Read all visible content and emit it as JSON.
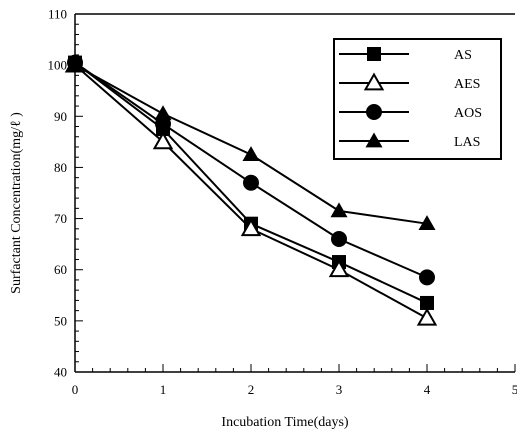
{
  "chart_data": {
    "type": "line",
    "xlabel": "Incubation Time(days)",
    "ylabel": "Surfactant Concentration(mg/ℓ )",
    "xlim": [
      0,
      5
    ],
    "ylim": [
      40,
      110
    ],
    "xticks": [
      "0",
      "1",
      "2",
      "3",
      "4",
      "5"
    ],
    "yticks": [
      "40",
      "50",
      "60",
      "70",
      "80",
      "90",
      "100",
      "110"
    ],
    "grid": false,
    "legend_position": "top-right",
    "x": [
      0,
      1,
      2,
      3,
      4
    ],
    "series": [
      {
        "name": "AS",
        "marker": "square-filled",
        "values": [
          100.5,
          87.5,
          69,
          61.5,
          53.5
        ]
      },
      {
        "name": "AES",
        "marker": "triangle-open",
        "values": [
          100,
          85,
          68,
          60,
          50.5
        ]
      },
      {
        "name": "AOS",
        "marker": "circle-filled",
        "values": [
          100.5,
          88.5,
          77,
          66,
          58.5
        ]
      },
      {
        "name": "LAS",
        "marker": "triangle-filled",
        "values": [
          100,
          90.5,
          82.5,
          71.5,
          69
        ]
      }
    ]
  }
}
